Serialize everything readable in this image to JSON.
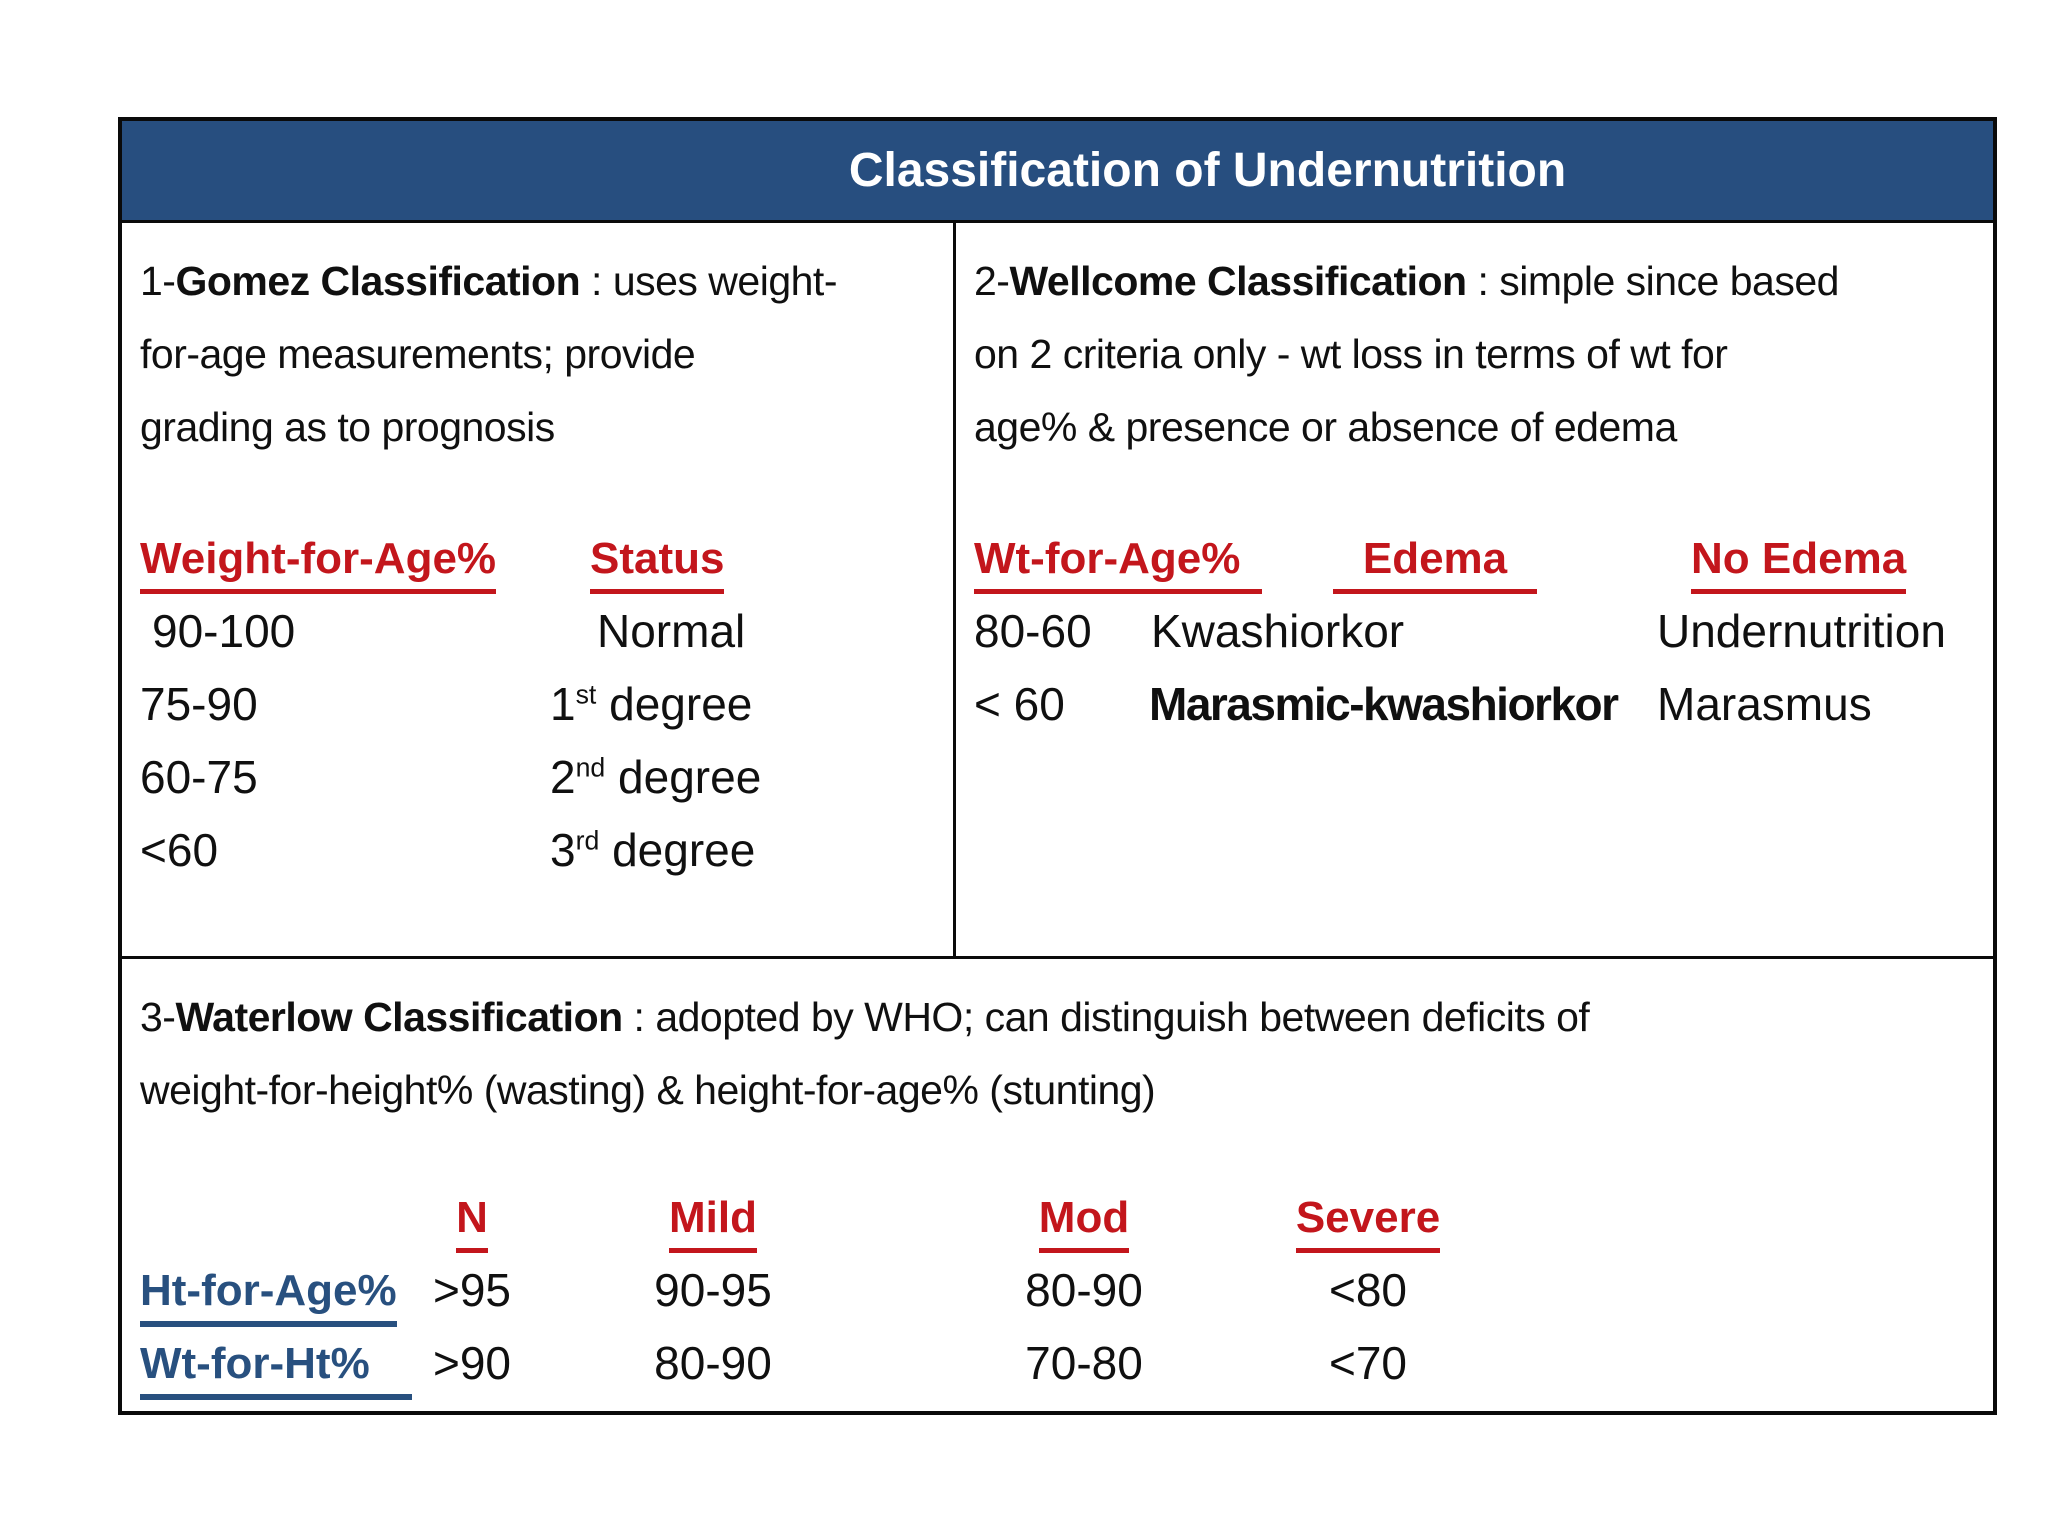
{
  "title": "Classification of Undernutrition",
  "colors": {
    "title_bar_bg": "#274E7F",
    "title_text": "#FFFFFF",
    "header_red": "#C3161C",
    "label_blue": "#28507F",
    "border": "#0A0A0A"
  },
  "gomez": {
    "heading_prefix": "1-",
    "heading_bold": "Gomez Classification",
    "heading_line1_rest": " : uses weight-",
    "heading_line2": "for-age measurements; provide",
    "heading_line3": "grading as to prognosis",
    "col_headers": [
      "Weight-for-Age%",
      "Status"
    ],
    "rows": [
      {
        "range": "90-100",
        "status_main": "Normal",
        "status_sup": "",
        "status_rest": ""
      },
      {
        "range": "75-90",
        "status_main": "1",
        "status_sup": "st",
        "status_rest": " degree"
      },
      {
        "range": "60-75",
        "status_main": "2",
        "status_sup": "nd",
        "status_rest": " degree"
      },
      {
        "range": "<60",
        "status_main": "3",
        "status_sup": "rd",
        "status_rest": " degree"
      }
    ]
  },
  "wellcome": {
    "heading_prefix": "2-",
    "heading_bold": "Wellcome Classification",
    "heading_line1_rest": " : simple since based",
    "heading_line2": "on 2 criteria only - wt loss in terms of wt for",
    "heading_line3": "age% & presence or absence of edema",
    "col_headers": [
      "Wt-for-Age%",
      "Edema",
      "No Edema"
    ],
    "rows": [
      {
        "range": "80-60",
        "edema": "Kwashiorkor",
        "no_edema": "Undernutrition"
      },
      {
        "range": "< 60",
        "edema": "Marasmic-kwashiorkor",
        "no_edema": "Marasmus"
      }
    ]
  },
  "waterlow": {
    "heading_prefix": "3-",
    "heading_bold": "Waterlow Classification",
    "heading_line1_rest": " : adopted by WHO; can distinguish between deficits of",
    "heading_line2": "weight-for-height% (wasting) & height-for-age% (stunting)",
    "col_headers": [
      "N",
      "Mild",
      "Mod",
      "Severe"
    ],
    "rows": [
      {
        "label": "Ht-for-Age%",
        "n": ">95",
        "mild": "90-95",
        "mod": "80-90",
        "severe": "<80"
      },
      {
        "label": "Wt-for-Ht%",
        "n": ">90",
        "mild": "80-90",
        "mod": "70-80",
        "severe": "<70"
      }
    ]
  }
}
